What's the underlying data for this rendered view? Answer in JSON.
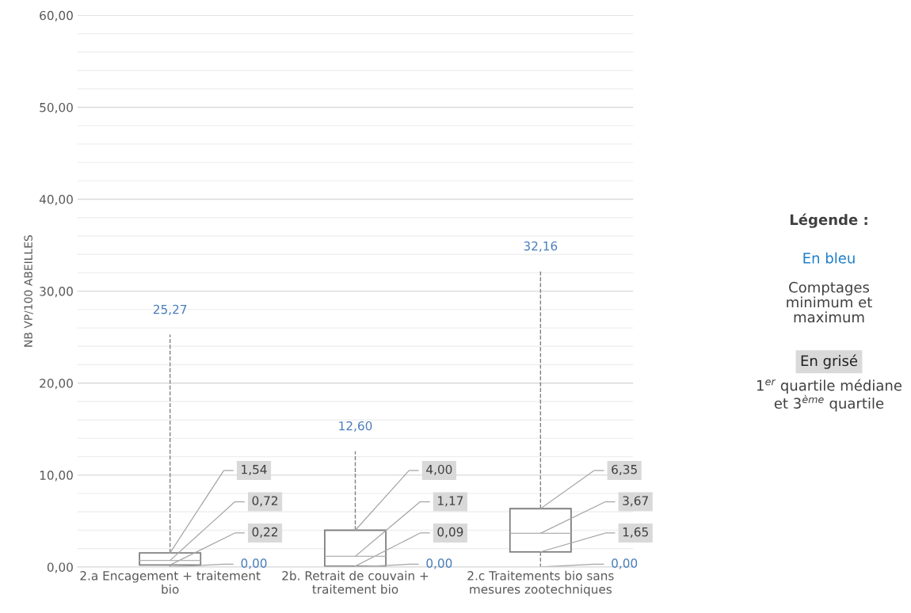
{
  "chart_data": {
    "type": "box",
    "ylabel": "NB VP/100 ABEILLES",
    "categories": [
      "2.a Encagement + traitement bio",
      "2b. Retrait de couvain + traitement bio",
      "2.c Traitements bio sans mesures zootechniques"
    ],
    "boxes": [
      {
        "low": 0.0,
        "q1": 0.22,
        "median": 0.72,
        "q3": 1.54,
        "high": 25.27
      },
      {
        "low": 0.0,
        "q1": 0.09,
        "median": 1.17,
        "q3": 4.0,
        "high": 12.6
      },
      {
        "low": 0.0,
        "q1": 1.65,
        "median": 3.67,
        "q3": 6.35,
        "high": 32.16
      }
    ],
    "ylim": [
      0,
      60
    ],
    "yticks": [
      {
        "value": 0,
        "label": "0,00"
      },
      {
        "value": 2,
        "label": null
      },
      {
        "value": 4,
        "label": null
      },
      {
        "value": 6,
        "label": null
      },
      {
        "value": 8,
        "label": null
      },
      {
        "value": 10,
        "label": "10,00"
      },
      {
        "value": 12,
        "label": null
      },
      {
        "value": 14,
        "label": null
      },
      {
        "value": 16,
        "label": null
      },
      {
        "value": 18,
        "label": null
      },
      {
        "value": 20,
        "label": "20,00"
      },
      {
        "value": 22,
        "label": null
      },
      {
        "value": 24,
        "label": null
      },
      {
        "value": 26,
        "label": null
      },
      {
        "value": 28,
        "label": null
      },
      {
        "value": 30,
        "label": "30,00"
      },
      {
        "value": 32,
        "label": null
      },
      {
        "value": 34,
        "label": null
      },
      {
        "value": 36,
        "label": null
      },
      {
        "value": 38,
        "label": null
      },
      {
        "value": 40,
        "label": "40,00"
      },
      {
        "value": 42,
        "label": null
      },
      {
        "value": 44,
        "label": null
      },
      {
        "value": 46,
        "label": null
      },
      {
        "value": 48,
        "label": null
      },
      {
        "value": 50,
        "label": "50,00"
      },
      {
        "value": 52,
        "label": null
      },
      {
        "value": 54,
        "label": null
      },
      {
        "value": 56,
        "label": null
      },
      {
        "value": 58,
        "label": null
      },
      {
        "value": 60,
        "label": "60,00"
      }
    ],
    "grid": "y",
    "value_labels": [
      [
        "0,00",
        "0,22",
        "0,72",
        "1,54",
        "25,27"
      ],
      [
        "0,00",
        "0,09",
        "1,17",
        "4,00",
        "12,60"
      ],
      [
        "0,00",
        "1,65",
        "3,67",
        "6,35",
        "32,16"
      ]
    ],
    "annotations": [
      "Légende :",
      "En bleu",
      "Comptages\nminimum et\nmaximum",
      "En grisé",
      "1$^{er}$ quartile médiane\net 3$^{ème}$ quartile"
    ]
  }
}
